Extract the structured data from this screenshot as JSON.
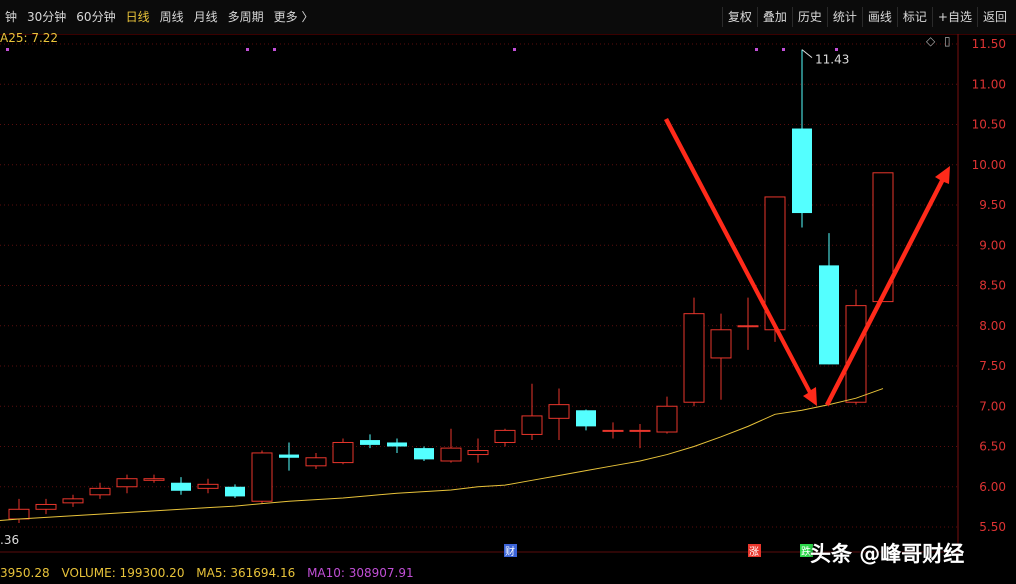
{
  "toolbar": {
    "periods": [
      "钟",
      "30分钟",
      "60分钟",
      "日线",
      "周线",
      "月线",
      "多周期",
      "更多 〉"
    ],
    "active_period": "日线",
    "actions": [
      "复权",
      "叠加",
      "历史",
      "统计",
      "画线",
      "标记",
      "+自选",
      "返回"
    ]
  },
  "ma_label": "A25: 7.22",
  "price_axis": {
    "labels": [
      "11.50",
      "11.00",
      "10.50",
      "10.00",
      "9.50",
      "9.00",
      "8.50",
      "8.00",
      "7.50",
      "7.00",
      "6.50",
      "6.00",
      "5.50"
    ],
    "min": 5.5,
    "max": 11.5
  },
  "annotations": {
    "high_price": "11.43",
    "low_price_partial": ".36",
    "markers": [
      "财",
      "涨",
      "跌"
    ]
  },
  "status": {
    "left_value": "3950.28",
    "volume": "VOLUME: 199300.20",
    "ma5": "MA5: 361694.16",
    "ma10": "MA10: 308907.91"
  },
  "watermark": "头条 @峰哥财经",
  "colors": {
    "up": "#e8362c",
    "down": "#54ffff",
    "ma": "#e8c33a",
    "ma5": "#e8c33a",
    "ma10": "#c14fd6",
    "arrow": "#ff2a1a"
  },
  "chart_data": {
    "type": "candlestick",
    "ylim": [
      5.5,
      11.5
    ],
    "candles": [
      {
        "o": 5.6,
        "c": 5.72,
        "h": 5.85,
        "l": 5.55
      },
      {
        "o": 5.72,
        "c": 5.78,
        "h": 5.85,
        "l": 5.66
      },
      {
        "o": 5.8,
        "c": 5.85,
        "h": 5.9,
        "l": 5.75
      },
      {
        "o": 5.9,
        "c": 5.98,
        "h": 6.05,
        "l": 5.85
      },
      {
        "o": 6.0,
        "c": 6.1,
        "h": 6.15,
        "l": 5.92
      },
      {
        "o": 6.08,
        "c": 6.1,
        "h": 6.15,
        "l": 6.05
      },
      {
        "o": 6.05,
        "c": 5.95,
        "h": 6.12,
        "l": 5.9
      },
      {
        "o": 5.98,
        "c": 6.03,
        "h": 6.1,
        "l": 5.92
      },
      {
        "o": 6.0,
        "c": 5.88,
        "h": 6.03,
        "l": 5.86
      },
      {
        "o": 5.82,
        "c": 6.42,
        "h": 6.45,
        "l": 5.79
      },
      {
        "o": 6.4,
        "c": 6.36,
        "h": 6.55,
        "l": 6.2
      },
      {
        "o": 6.26,
        "c": 6.36,
        "h": 6.42,
        "l": 6.22
      },
      {
        "o": 6.3,
        "c": 6.55,
        "h": 6.6,
        "l": 6.28
      },
      {
        "o": 6.58,
        "c": 6.52,
        "h": 6.65,
        "l": 6.48
      },
      {
        "o": 6.55,
        "c": 6.5,
        "h": 6.6,
        "l": 6.42
      },
      {
        "o": 6.48,
        "c": 6.34,
        "h": 6.5,
        "l": 6.32
      },
      {
        "o": 6.32,
        "c": 6.48,
        "h": 6.72,
        "l": 6.3
      },
      {
        "o": 6.4,
        "c": 6.45,
        "h": 6.6,
        "l": 6.3
      },
      {
        "o": 6.55,
        "c": 6.7,
        "h": 6.72,
        "l": 6.5
      },
      {
        "o": 6.65,
        "c": 6.88,
        "h": 7.28,
        "l": 6.58
      },
      {
        "o": 6.85,
        "c": 7.02,
        "h": 7.22,
        "l": 6.58
      },
      {
        "o": 6.95,
        "c": 6.75,
        "h": 6.96,
        "l": 6.7
      },
      {
        "o": 6.7,
        "c": 6.7,
        "h": 6.8,
        "l": 6.6
      },
      {
        "o": 6.7,
        "c": 6.7,
        "h": 6.78,
        "l": 6.48
      },
      {
        "o": 6.68,
        "c": 7.0,
        "h": 7.12,
        "l": 6.66
      },
      {
        "o": 7.05,
        "c": 8.15,
        "h": 8.35,
        "l": 7.0
      },
      {
        "o": 7.6,
        "c": 7.95,
        "h": 8.15,
        "l": 7.08
      },
      {
        "o": 8.0,
        "c": 8.0,
        "h": 8.35,
        "l": 7.7
      },
      {
        "o": 7.95,
        "c": 9.6,
        "h": 9.6,
        "l": 7.8
      },
      {
        "o": 10.45,
        "c": 9.4,
        "h": 11.43,
        "l": 9.22
      },
      {
        "o": 8.75,
        "c": 7.52,
        "h": 9.15,
        "l": 7.52
      },
      {
        "o": 7.05,
        "c": 8.25,
        "h": 8.45,
        "l": 7.02
      },
      {
        "o": 8.3,
        "c": 9.9,
        "h": 9.9,
        "l": 8.3
      }
    ],
    "ma": [
      5.6,
      5.62,
      5.64,
      5.66,
      5.68,
      5.7,
      5.72,
      5.74,
      5.76,
      5.79,
      5.82,
      5.84,
      5.86,
      5.89,
      5.92,
      5.94,
      5.96,
      6.0,
      6.02,
      6.08,
      6.14,
      6.2,
      6.26,
      6.32,
      6.4,
      6.5,
      6.62,
      6.75,
      6.9,
      6.95,
      7.02,
      7.1,
      7.22
    ]
  }
}
